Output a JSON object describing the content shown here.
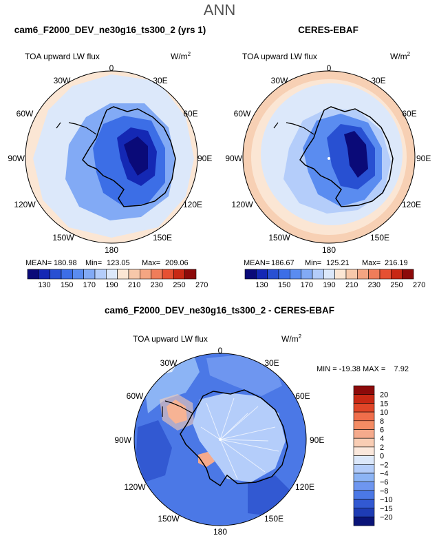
{
  "chart_data": {
    "type": "map",
    "title": "ANN",
    "panels": [
      {
        "id": "test",
        "title": "cam6_F2000_DEV_ne30g16_ts300_2 (yrs 1)",
        "left_label": "TOA upward LW flux",
        "unit_base": "W/m",
        "unit_exp": "2",
        "lon_labels": {
          "top": "0",
          "tr": "30E",
          "r1": "60E",
          "r2": "90E",
          "r3": "120E",
          "br": "150E",
          "bottom": "180",
          "bl": "150W",
          "l3": "120W",
          "l2": "90W",
          "l1": "60W",
          "tl": "30W"
        },
        "stats": {
          "mean_label": "MEAN=",
          "mean": "180.98",
          "min_label": "Min=",
          "min": "123.05",
          "max_label": "Max=",
          "max": "209.06"
        },
        "colorbar": {
          "levels": [
            "130",
            "150",
            "170",
            "190",
            "210",
            "230",
            "250",
            "270"
          ],
          "colors": [
            "#0a0a78",
            "#1428b4",
            "#2850d2",
            "#3c6ee6",
            "#5a8cf0",
            "#82aaf5",
            "#b4cdfa",
            "#dce8fa",
            "#fbe6d4",
            "#f7c8aa",
            "#f4a582",
            "#ef7d5a",
            "#e65032",
            "#c82814",
            "#8c0a0a"
          ]
        }
      },
      {
        "id": "obs",
        "title": "CERES-EBAF",
        "left_label": "TOA upward LW flux",
        "unit_base": "W/m",
        "unit_exp": "2",
        "lon_labels": {
          "top": "0",
          "tr": "30E",
          "r1": "60E",
          "r2": "90E",
          "r3": "120E",
          "br": "150E",
          "bottom": "180",
          "bl": "150W",
          "l3": "120W",
          "l2": "90W",
          "l1": "60W",
          "tl": "30W"
        },
        "stats": {
          "mean_label": "MEAN=",
          "mean": "186.67",
          "min_label": "Min=",
          "min": "125.21",
          "max_label": "Max=",
          "max": "216.19"
        },
        "colorbar": {
          "levels": [
            "130",
            "150",
            "170",
            "190",
            "210",
            "230",
            "250",
            "270"
          ],
          "colors": [
            "#0a0a78",
            "#1428b4",
            "#2850d2",
            "#3c6ee6",
            "#5a8cf0",
            "#82aaf5",
            "#b4cdfa",
            "#dce8fa",
            "#fbe6d4",
            "#f7c8aa",
            "#f4a582",
            "#ef7d5a",
            "#e65032",
            "#c82814",
            "#8c0a0a"
          ]
        }
      },
      {
        "id": "diff",
        "title": "cam6_F2000_DEV_ne30g16_ts300_2 - CERES-EBAF",
        "left_label": "TOA upward LW flux",
        "unit_base": "W/m",
        "unit_exp": "2",
        "lon_labels": {
          "top": "0",
          "tr": "30E",
          "r1": "60E",
          "r2": "90E",
          "r3": "120E",
          "br": "150E",
          "bottom": "180",
          "bl": "150W",
          "l3": "120W",
          "l2": "90W",
          "l1": "60W",
          "tl": "30W"
        },
        "stats": {
          "min_label": "MIN =",
          "min": "-19.38",
          "max_label": "MAX =",
          "max": "7.92"
        },
        "colorbar": {
          "levels": [
            "20",
            "15",
            "10",
            "8",
            "6",
            "4",
            "2",
            "0",
            "−2",
            "−4",
            "−6",
            "−8",
            "−10",
            "−15",
            "−20"
          ],
          "colors": [
            "#8c0a0a",
            "#c82814",
            "#e04628",
            "#ef6e4b",
            "#f48c64",
            "#f5aa8c",
            "#f9cdb4",
            "#fbe8dc",
            "#dce8fa",
            "#b4cdfa",
            "#8cb4f5",
            "#6e96f0",
            "#4b78e6",
            "#3259d2",
            "#1e3cb4",
            "#0a1478"
          ]
        }
      }
    ]
  }
}
